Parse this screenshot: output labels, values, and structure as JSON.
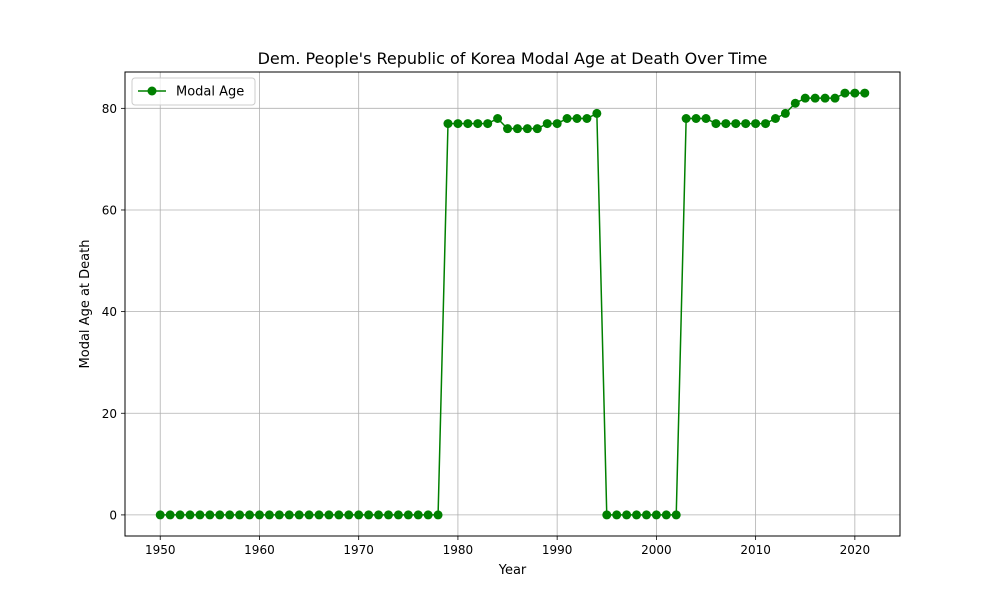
{
  "chart_data": {
    "type": "line",
    "title": "Dem. People's Republic of Korea Modal Age at Death Over Time",
    "xlabel": "Year",
    "ylabel": "Modal Age at Death",
    "xlim": [
      1946.45,
      2024.55
    ],
    "ylim": [
      -4.15,
      87.15
    ],
    "xticks": [
      1950,
      1960,
      1970,
      1980,
      1990,
      2000,
      2010,
      2020
    ],
    "yticks": [
      0,
      20,
      40,
      60,
      80
    ],
    "grid": true,
    "legend_position": "top-left",
    "series": [
      {
        "name": "Modal Age",
        "color": "#008000",
        "marker": "circle",
        "x": [
          1950,
          1951,
          1952,
          1953,
          1954,
          1955,
          1956,
          1957,
          1958,
          1959,
          1960,
          1961,
          1962,
          1963,
          1964,
          1965,
          1966,
          1967,
          1968,
          1969,
          1970,
          1971,
          1972,
          1973,
          1974,
          1975,
          1976,
          1977,
          1978,
          1979,
          1980,
          1981,
          1982,
          1983,
          1984,
          1985,
          1986,
          1987,
          1988,
          1989,
          1990,
          1991,
          1992,
          1993,
          1994,
          1995,
          1996,
          1997,
          1998,
          1999,
          2000,
          2001,
          2002,
          2003,
          2004,
          2005,
          2006,
          2007,
          2008,
          2009,
          2010,
          2011,
          2012,
          2013,
          2014,
          2015,
          2016,
          2017,
          2018,
          2019,
          2020,
          2021
        ],
        "values": [
          0,
          0,
          0,
          0,
          0,
          0,
          0,
          0,
          0,
          0,
          0,
          0,
          0,
          0,
          0,
          0,
          0,
          0,
          0,
          0,
          0,
          0,
          0,
          0,
          0,
          0,
          0,
          0,
          0,
          77,
          77,
          77,
          77,
          77,
          78,
          76,
          76,
          76,
          76,
          77,
          77,
          78,
          78,
          78,
          79,
          0,
          0,
          0,
          0,
          0,
          0,
          0,
          0,
          78,
          78,
          78,
          77,
          77,
          77,
          77,
          77,
          77,
          78,
          79,
          81,
          82,
          82,
          82,
          82,
          83,
          83,
          83
        ]
      }
    ]
  }
}
